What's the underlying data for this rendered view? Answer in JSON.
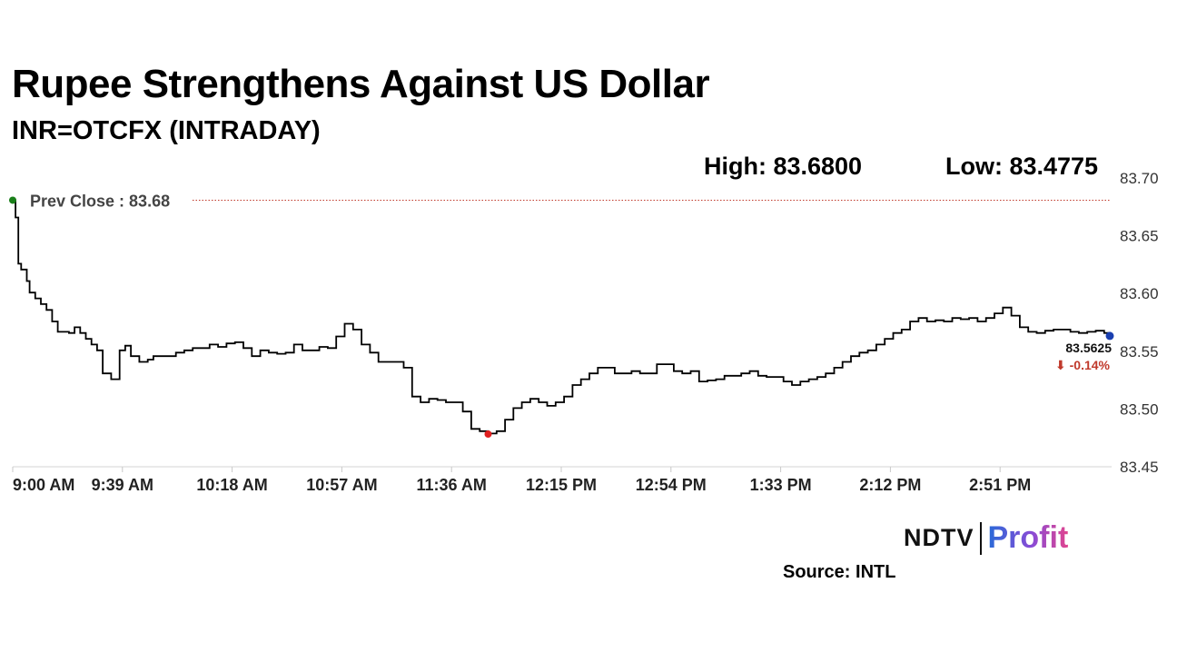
{
  "header": {
    "title": "Rupee Strengthens Against US Dollar",
    "subtitle": "INR=OTCFX (INTRADAY)",
    "high_label": "High: 83.6800",
    "low_label": "Low: 83.4775"
  },
  "footer": {
    "brand_ndtv": "NDTV",
    "brand_profit": "Profit",
    "source": "Source: INTL"
  },
  "colors": {
    "line": "#000000",
    "prev_close_line": "#c0392b",
    "start_marker": "#1a7f1a",
    "low_marker": "#e02020",
    "last_marker": "#1a3fb0",
    "change_text": "#c0392b"
  },
  "chart_data": {
    "type": "line",
    "title": "Rupee Strengthens Against US Dollar",
    "subtitle": "INR=OTCFX (INTRADAY)",
    "x_tick_labels": [
      "9:00 AM",
      "9:39 AM",
      "10:18 AM",
      "10:57 AM",
      "11:36 AM",
      "12:15 PM",
      "12:54 PM",
      "1:33 PM",
      "2:12 PM",
      "2:51 PM"
    ],
    "y_tick_labels": [
      "83.70",
      "83.65",
      "83.60",
      "83.55",
      "83.50",
      "83.45"
    ],
    "ylim": [
      83.45,
      83.7
    ],
    "xlim_minutes_after_9am": [
      0,
      390
    ],
    "grid": false,
    "y_axis_position": "right",
    "series": [
      {
        "x_minutes_after_9am": [
          0,
          1,
          2,
          3,
          5,
          6,
          8,
          10,
          12,
          14,
          16,
          18,
          20,
          22,
          24,
          26,
          28,
          30,
          32,
          35,
          38,
          40,
          42,
          45,
          48,
          50,
          52,
          55,
          58,
          61,
          64,
          67,
          70,
          73,
          76,
          79,
          82,
          85,
          88,
          91,
          94,
          97,
          100,
          103,
          106,
          109,
          112,
          115,
          118,
          121,
          124,
          127,
          130,
          133,
          136,
          139,
          142,
          145,
          148,
          151,
          154,
          157,
          160,
          163,
          166,
          169,
          172,
          175,
          178,
          181,
          184,
          187,
          190,
          193,
          196,
          199,
          202,
          205,
          208,
          211,
          214,
          217,
          220,
          223,
          226,
          229,
          232,
          235,
          238,
          241,
          244,
          247,
          250,
          253,
          256,
          259,
          262,
          265,
          268,
          271,
          274,
          277,
          280,
          283,
          286,
          289,
          292,
          295,
          298,
          301,
          304,
          307,
          310,
          313,
          316,
          319,
          322,
          325,
          328,
          331,
          334,
          337,
          340,
          343,
          346,
          349,
          352,
          355,
          358,
          361,
          364,
          367,
          370,
          373,
          376,
          379,
          382,
          385,
          388,
          390
        ],
        "values": [
          83.68,
          83.665,
          83.625,
          83.62,
          83.61,
          83.6,
          83.595,
          83.59,
          83.585,
          83.575,
          83.566,
          83.566,
          83.565,
          83.57,
          83.565,
          83.56,
          83.555,
          83.55,
          83.53,
          83.525,
          83.55,
          83.554,
          83.545,
          83.54,
          83.542,
          83.545,
          83.545,
          83.545,
          83.548,
          83.55,
          83.552,
          83.552,
          83.555,
          83.553,
          83.556,
          83.557,
          83.552,
          83.545,
          83.55,
          83.548,
          83.547,
          83.548,
          83.555,
          83.55,
          83.55,
          83.553,
          83.552,
          83.562,
          83.573,
          83.568,
          83.555,
          83.548,
          83.54,
          83.54,
          83.54,
          83.535,
          83.51,
          83.505,
          83.508,
          83.507,
          83.505,
          83.505,
          83.497,
          83.482,
          83.48,
          83.478,
          83.48,
          83.49,
          83.5,
          83.505,
          83.508,
          83.505,
          83.502,
          83.505,
          83.51,
          83.52,
          83.525,
          83.53,
          83.535,
          83.535,
          83.53,
          83.53,
          83.532,
          83.53,
          83.53,
          83.538,
          83.538,
          83.532,
          83.53,
          83.532,
          83.523,
          83.524,
          83.525,
          83.528,
          83.528,
          83.53,
          83.532,
          83.528,
          83.527,
          83.527,
          83.523,
          83.52,
          83.523,
          83.525,
          83.527,
          83.53,
          83.535,
          83.54,
          83.545,
          83.548,
          83.55,
          83.555,
          83.56,
          83.565,
          83.568,
          83.575,
          83.578,
          83.575,
          83.576,
          83.575,
          83.578,
          83.577,
          83.578,
          83.575,
          83.578,
          83.582,
          83.587,
          83.58,
          83.57,
          83.566,
          83.565,
          83.567,
          83.568,
          83.568,
          83.566,
          83.565,
          83.566,
          83.567,
          83.565,
          83.5625
        ]
      }
    ],
    "prev_close": 83.68,
    "prev_close_label": "Prev Close : 83.68",
    "day_low": 83.4775,
    "day_low_x_minutes_after_9am": 169,
    "last_value": 83.5625,
    "last_value_label": "83.5625",
    "change_label": "⬇ -0.14%"
  }
}
